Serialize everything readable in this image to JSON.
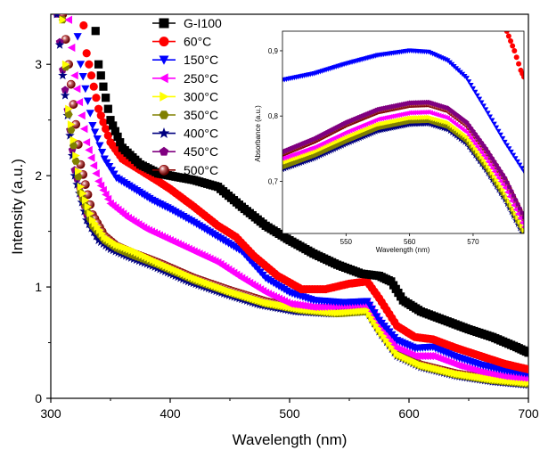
{
  "chart_data": [
    {
      "type": "scatter",
      "title": "",
      "xlabel": "Wavelength (nm)",
      "ylabel": "Intensity (a.u.)",
      "xlim": [
        300,
        700
      ],
      "ylim": [
        0,
        3.45
      ],
      "xticks": [
        300,
        400,
        500,
        600,
        700
      ],
      "yticks": [
        0,
        1,
        2,
        3
      ],
      "grid": false,
      "legend_position": "top-center",
      "series": [
        {
          "name": "G-I100",
          "color": "#000000",
          "marker": "square",
          "x": [
            335,
            340,
            350,
            360,
            375,
            390,
            400,
            420,
            440,
            460,
            480,
            500,
            520,
            540,
            560,
            575,
            585,
            595,
            610,
            630,
            650,
            670,
            690,
            700
          ],
          "y": [
            3.6,
            3.0,
            2.5,
            2.25,
            2.1,
            2.02,
            2.0,
            1.96,
            1.9,
            1.72,
            1.55,
            1.42,
            1.3,
            1.2,
            1.12,
            1.1,
            1.05,
            0.88,
            0.78,
            0.7,
            0.62,
            0.55,
            0.46,
            0.41
          ]
        },
        {
          "name": "60°C",
          "color": "#ff0000",
          "marker": "circle",
          "x": [
            325,
            330,
            340,
            350,
            360,
            375,
            390,
            400,
            420,
            440,
            455,
            470,
            490,
            510,
            530,
            550,
            565,
            575,
            590,
            605,
            620,
            640,
            660,
            680,
            700
          ],
          "y": [
            3.6,
            3.1,
            2.6,
            2.3,
            2.15,
            2.05,
            1.95,
            1.88,
            1.72,
            1.55,
            1.45,
            1.28,
            1.1,
            0.98,
            0.98,
            1.03,
            1.05,
            0.9,
            0.65,
            0.55,
            0.53,
            0.45,
            0.38,
            0.31,
            0.26
          ]
        },
        {
          "name": "150°C",
          "color": "#0000ff",
          "marker": "triangle-down",
          "x": [
            320,
            325,
            335,
            345,
            355,
            370,
            385,
            400,
            420,
            440,
            460,
            480,
            500,
            520,
            545,
            565,
            575,
            590,
            605,
            620,
            640,
            660,
            680,
            700
          ],
          "y": [
            3.5,
            3.0,
            2.45,
            2.15,
            1.98,
            1.88,
            1.78,
            1.7,
            1.58,
            1.45,
            1.32,
            1.08,
            0.95,
            0.88,
            0.86,
            0.87,
            0.7,
            0.52,
            0.45,
            0.46,
            0.37,
            0.3,
            0.25,
            0.22
          ]
        },
        {
          "name": "250°C",
          "color": "#ff00ff",
          "marker": "triangle-left",
          "x": [
            315,
            320,
            330,
            340,
            350,
            365,
            380,
            400,
            420,
            440,
            460,
            480,
            500,
            520,
            545,
            565,
            575,
            590,
            605,
            620,
            640,
            660,
            680,
            700
          ],
          "y": [
            3.4,
            2.9,
            2.3,
            1.95,
            1.75,
            1.62,
            1.52,
            1.42,
            1.32,
            1.22,
            1.08,
            0.95,
            0.85,
            0.82,
            0.83,
            0.85,
            0.68,
            0.45,
            0.38,
            0.38,
            0.3,
            0.24,
            0.2,
            0.18
          ]
        },
        {
          "name": "300°C",
          "color": "#ffff00",
          "marker": "triangle-right",
          "x": [
            310,
            315,
            325,
            335,
            345,
            355,
            370,
            390,
            420,
            450,
            480,
            510,
            540,
            565,
            575,
            590,
            610,
            640,
            670,
            700
          ],
          "y": [
            3.4,
            2.6,
            1.9,
            1.6,
            1.45,
            1.38,
            1.32,
            1.22,
            1.08,
            0.96,
            0.86,
            0.8,
            0.77,
            0.79,
            0.62,
            0.4,
            0.3,
            0.22,
            0.17,
            0.14
          ]
        },
        {
          "name": "350°C",
          "color": "#808000",
          "marker": "hexagon",
          "x": [
            310,
            315,
            325,
            335,
            345,
            355,
            370,
            390,
            420,
            450,
            480,
            510,
            540,
            565,
            575,
            590,
            610,
            640,
            670,
            700
          ],
          "y": [
            3.4,
            2.55,
            1.85,
            1.55,
            1.42,
            1.35,
            1.28,
            1.2,
            1.06,
            0.95,
            0.85,
            0.79,
            0.76,
            0.78,
            0.61,
            0.39,
            0.29,
            0.21,
            0.16,
            0.13
          ]
        },
        {
          "name": "400°C",
          "color": "#000080",
          "marker": "star",
          "x": [
            305,
            310,
            320,
            330,
            340,
            350,
            365,
            385,
            415,
            445,
            475,
            505,
            535,
            565,
            575,
            590,
            610,
            640,
            670,
            700
          ],
          "y": [
            3.45,
            2.9,
            2.0,
            1.6,
            1.42,
            1.34,
            1.27,
            1.19,
            1.05,
            0.94,
            0.84,
            0.78,
            0.76,
            0.78,
            0.6,
            0.38,
            0.28,
            0.2,
            0.15,
            0.12
          ]
        },
        {
          "name": "450°C",
          "color": "#800080",
          "marker": "pentagon",
          "x": [
            305,
            310,
            320,
            330,
            340,
            350,
            365,
            385,
            415,
            445,
            475,
            505,
            535,
            565,
            575,
            590,
            610,
            640,
            670,
            700
          ],
          "y": [
            3.45,
            2.95,
            2.05,
            1.65,
            1.45,
            1.36,
            1.29,
            1.21,
            1.07,
            0.96,
            0.86,
            0.8,
            0.78,
            0.8,
            0.62,
            0.4,
            0.29,
            0.21,
            0.16,
            0.13
          ]
        },
        {
          "name": "500°C",
          "color": "#8b0000",
          "marker": "sphere",
          "x": [
            310,
            315,
            325,
            335,
            345,
            355,
            370,
            390,
            420,
            450,
            480,
            510,
            540,
            565,
            575,
            590,
            610,
            640,
            670,
            700
          ],
          "y": [
            3.45,
            3.0,
            2.1,
            1.65,
            1.46,
            1.37,
            1.3,
            1.22,
            1.08,
            0.97,
            0.87,
            0.8,
            0.78,
            0.8,
            0.62,
            0.4,
            0.3,
            0.22,
            0.17,
            0.14
          ]
        }
      ]
    },
    {
      "type": "scatter",
      "title": "",
      "xlabel": "Wavelength (nm)",
      "ylabel": "Absorbance (a.u.)",
      "xlim": [
        540,
        578
      ],
      "ylim": [
        0.62,
        0.93
      ],
      "xticks": [
        550,
        560,
        570
      ],
      "xtick_labels": [
        "550",
        "560",
        "570"
      ],
      "xtick_left_partial": "40",
      "yticks": [
        0.7,
        0.8,
        0.9
      ],
      "ytick_labels": [
        "0,7",
        "0,8",
        "0,9"
      ],
      "grid": false,
      "legend_position": "none",
      "series": [
        {
          "name": "60°C",
          "color": "#ff0000",
          "marker": "circle",
          "x": [
            575.3,
            576.5,
            577.5,
            578
          ],
          "y": [
            0.93,
            0.9,
            0.87,
            0.86
          ]
        },
        {
          "name": "150°C",
          "color": "#0000ff",
          "marker": "triangle-down",
          "x": [
            540,
            545,
            550,
            555,
            560,
            563,
            566,
            569,
            572,
            575,
            578
          ],
          "y": [
            0.855,
            0.865,
            0.88,
            0.893,
            0.9,
            0.898,
            0.885,
            0.858,
            0.81,
            0.76,
            0.715
          ]
        },
        {
          "name": "250°C",
          "color": "#ff00ff",
          "marker": "triangle-left",
          "x": [
            540,
            545,
            550,
            555,
            560,
            563,
            566,
            569,
            572,
            575,
            578
          ],
          "y": [
            0.735,
            0.752,
            0.775,
            0.795,
            0.805,
            0.806,
            0.797,
            0.775,
            0.735,
            0.69,
            0.63
          ]
        },
        {
          "name": "300°C",
          "color": "#ffff00",
          "marker": "triangle-right",
          "x": [
            540,
            545,
            550,
            555,
            560,
            563,
            566,
            569,
            572,
            575,
            578
          ],
          "y": [
            0.728,
            0.745,
            0.767,
            0.787,
            0.797,
            0.798,
            0.79,
            0.768,
            0.728,
            0.682,
            0.625
          ]
        },
        {
          "name": "350°C",
          "color": "#808000",
          "marker": "hexagon",
          "x": [
            540,
            545,
            550,
            555,
            560,
            563,
            566,
            569,
            572,
            575,
            578
          ],
          "y": [
            0.722,
            0.74,
            0.762,
            0.782,
            0.792,
            0.793,
            0.784,
            0.762,
            0.722,
            0.676,
            0.62
          ]
        },
        {
          "name": "400°C",
          "color": "#000080",
          "marker": "star",
          "x": [
            540,
            545,
            550,
            555,
            560,
            563,
            566,
            569,
            572,
            575,
            578
          ],
          "y": [
            0.718,
            0.735,
            0.757,
            0.777,
            0.787,
            0.788,
            0.779,
            0.757,
            0.717,
            0.671,
            0.615
          ]
        },
        {
          "name": "450°C",
          "color": "#800080",
          "marker": "pentagon",
          "x": [
            540,
            545,
            550,
            555,
            560,
            563,
            566,
            569,
            572,
            575,
            578
          ],
          "y": [
            0.745,
            0.765,
            0.79,
            0.81,
            0.82,
            0.821,
            0.812,
            0.79,
            0.75,
            0.705,
            0.645
          ]
        },
        {
          "name": "500°C",
          "color": "#8b0000",
          "marker": "sphere",
          "x": [
            540,
            545,
            550,
            555,
            560,
            563,
            566,
            569,
            572,
            575,
            578
          ],
          "y": [
            0.742,
            0.762,
            0.787,
            0.807,
            0.817,
            0.818,
            0.809,
            0.787,
            0.747,
            0.702,
            0.642
          ]
        }
      ]
    }
  ]
}
